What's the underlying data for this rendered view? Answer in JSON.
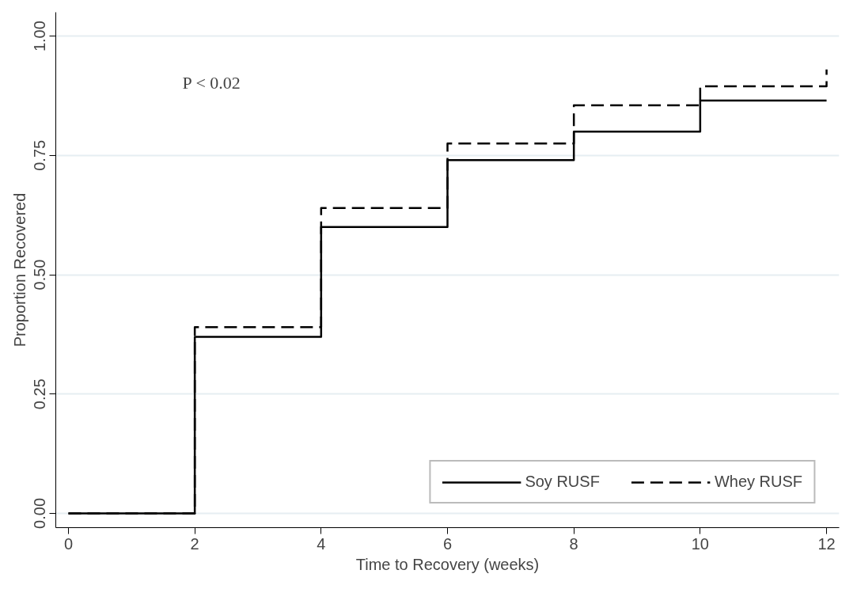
{
  "chart_data": {
    "type": "step",
    "xlabel": "Time to Recovery (weeks)",
    "ylabel": "Proportion Recovered",
    "x": [
      0,
      2,
      4,
      6,
      8,
      10,
      12
    ],
    "series": [
      {
        "name": "Soy RUSF",
        "color": "#000000",
        "line_style": "solid",
        "values": [
          0,
          0.37,
          0.6,
          0.74,
          0.8,
          0.865,
          0.865
        ]
      },
      {
        "name": "Whey RUSF",
        "color": "#000000",
        "line_style": "dashed",
        "values": [
          0,
          0.39,
          0.64,
          0.775,
          0.855,
          0.895,
          0.93
        ]
      }
    ],
    "xlim": [
      -0.2,
      12.2
    ],
    "ylim": [
      -0.03,
      1.05
    ],
    "xticks": [
      0,
      2,
      4,
      6,
      8,
      10,
      12
    ],
    "yticks": [
      {
        "value": 0,
        "label": "0.00"
      },
      {
        "value": 0.25,
        "label": "0.25"
      },
      {
        "value": 0.5,
        "label": "0.50"
      },
      {
        "value": 0.75,
        "label": "0.75"
      },
      {
        "value": 1,
        "label": "1.00"
      }
    ],
    "grid": "y",
    "legend": "bottom right",
    "annotations": [
      "P < 0.02"
    ]
  }
}
